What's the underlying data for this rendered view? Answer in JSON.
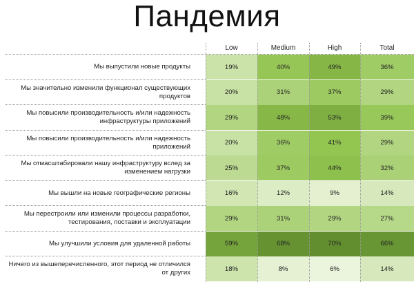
{
  "title": "Пандемия",
  "chart_data": {
    "type": "heatmap",
    "title": "Пандемия",
    "columns": [
      "Low",
      "Medium",
      "High",
      "Total"
    ],
    "rows": [
      "Мы выпустили новые продукты",
      "Мы значительно изменили функционал существующих продуктов",
      "Мы повысили производительность и/или надежность инфраструктуры приложений",
      "Мы повысили производительность и/или надежность приложений",
      "Мы отмасштабировали нашу инфраструктуру вслед за изменением нагрузки",
      "Мы вышли на новые географические регионы",
      "Мы перестроили или изменили процессы разработки, тестирования, поставки и эксплуатации",
      "Мы улучшили условия для удаленной работы",
      "Ничего из вышеперечисленного, этот период не отличился от других"
    ],
    "values": [
      [
        19,
        40,
        49,
        36
      ],
      [
        20,
        31,
        37,
        29
      ],
      [
        29,
        48,
        53,
        39
      ],
      [
        20,
        36,
        41,
        29
      ],
      [
        25,
        37,
        44,
        32
      ],
      [
        16,
        12,
        9,
        14
      ],
      [
        29,
        31,
        29,
        27
      ],
      [
        59,
        68,
        70,
        66
      ],
      [
        18,
        8,
        6,
        14
      ]
    ],
    "value_suffix": "%",
    "colors": {
      "low": "#eef5e0",
      "high": "#5f8a2e"
    }
  }
}
